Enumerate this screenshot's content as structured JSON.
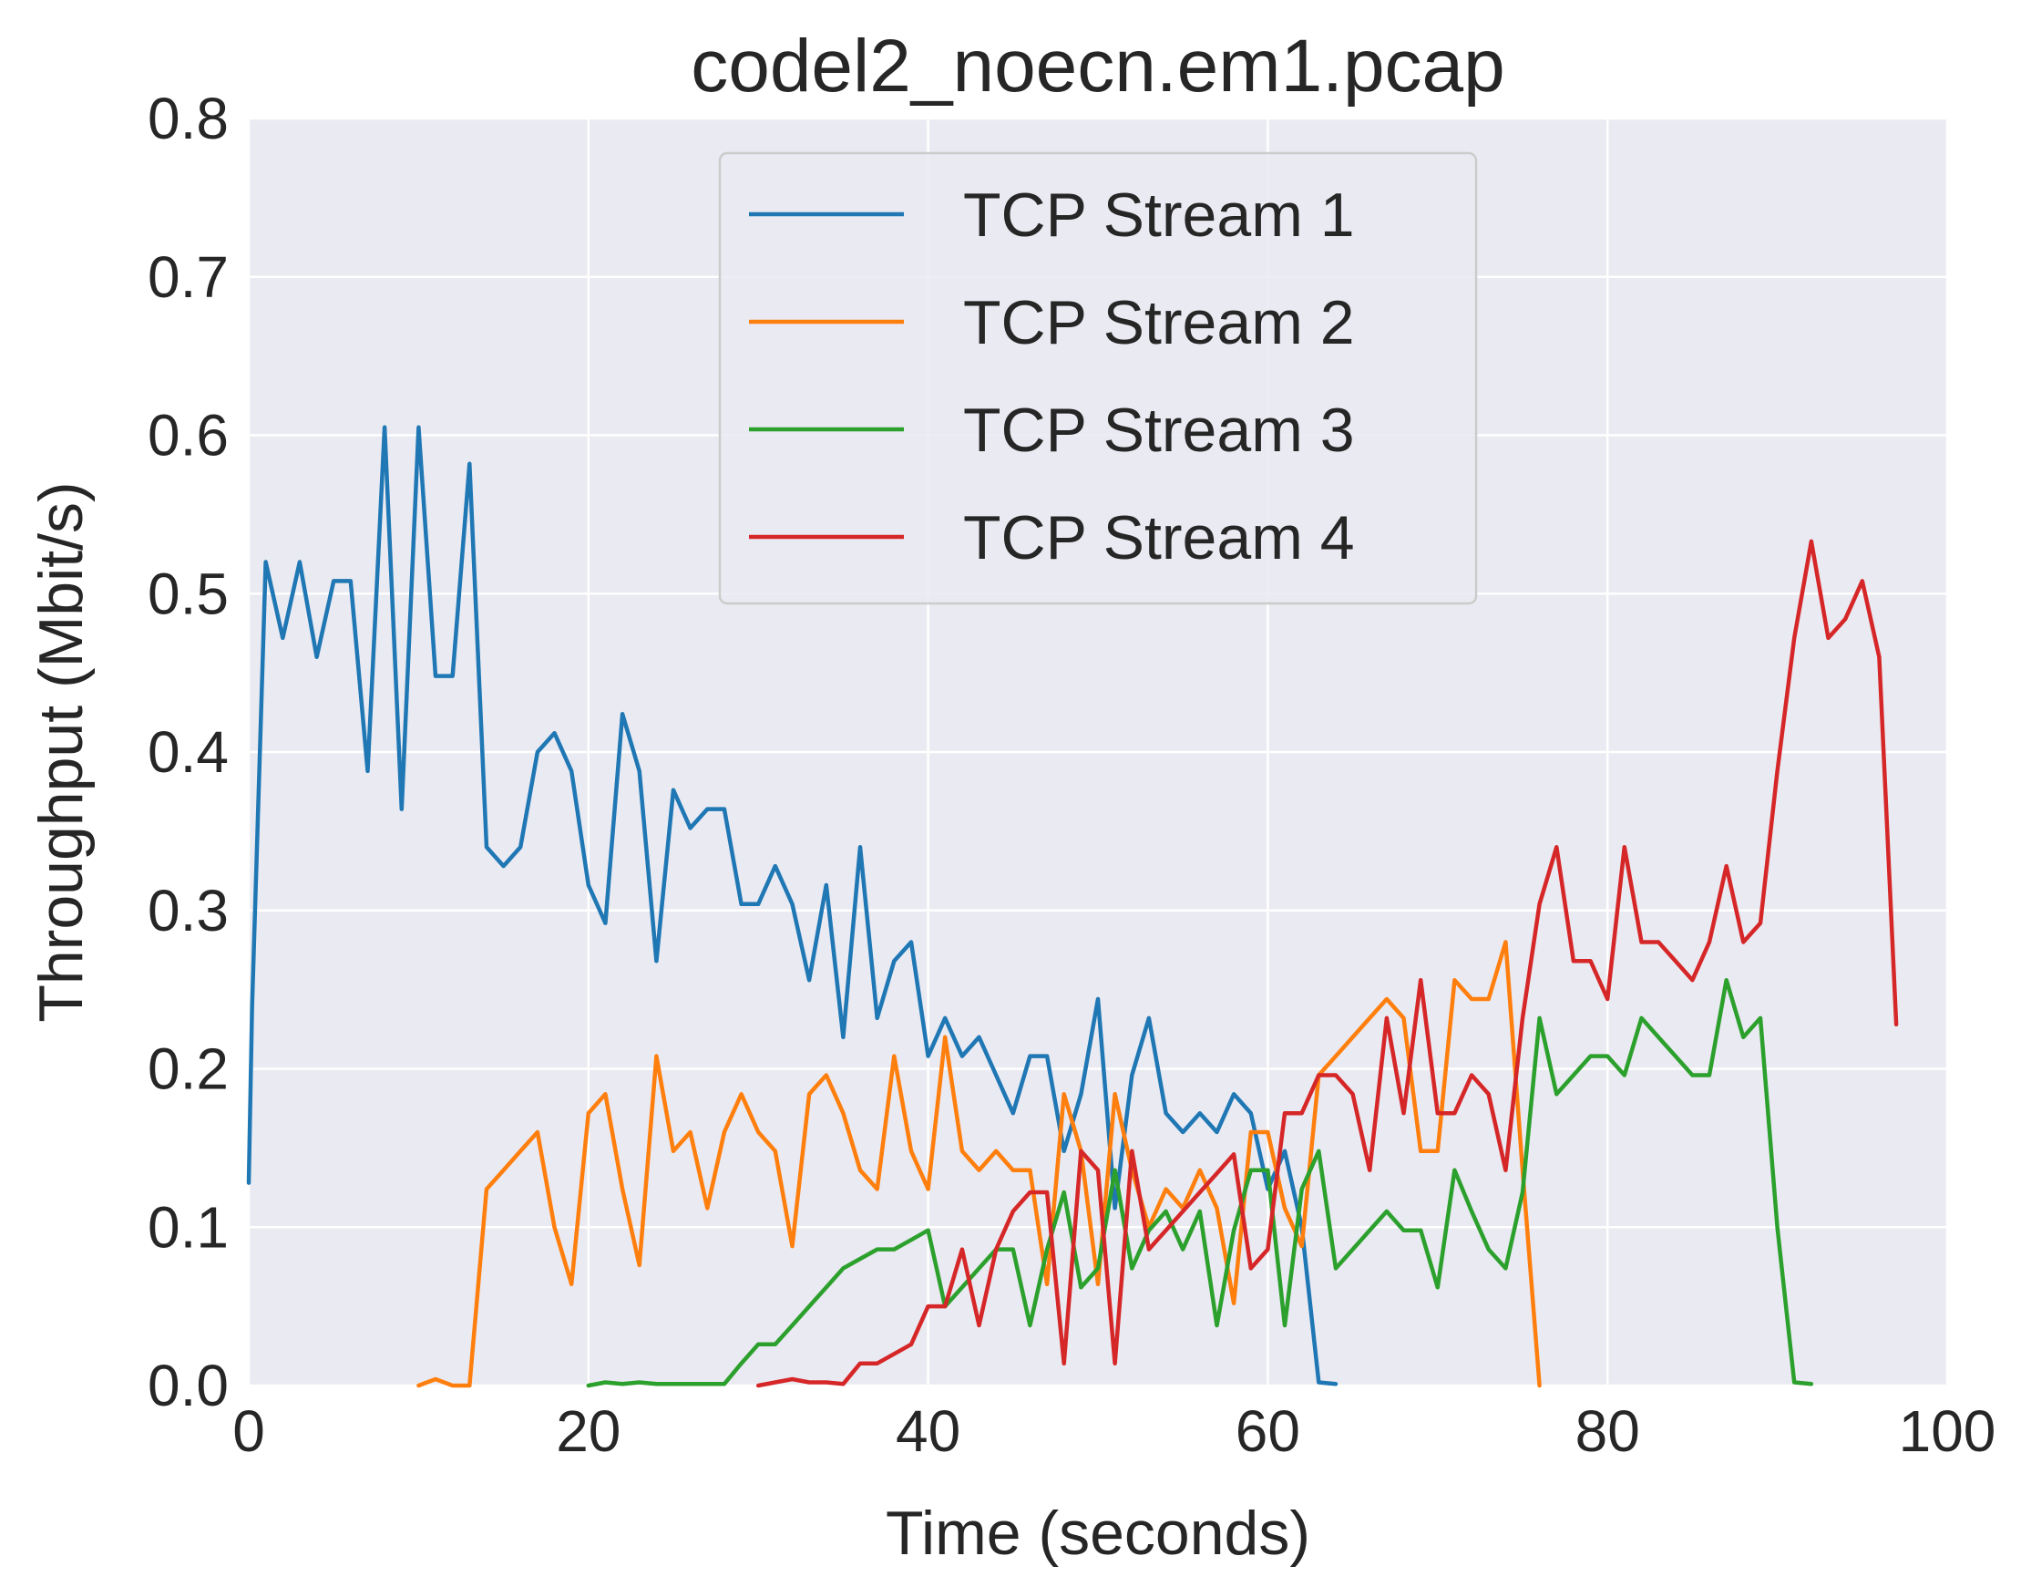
{
  "chart_data": {
    "type": "line",
    "title": "codel2_noecn.em1.pcap",
    "xlabel": "Time (seconds)",
    "ylabel": "Throughput (Mbit/s)",
    "xlim": [
      0,
      100
    ],
    "ylim": [
      0,
      0.8
    ],
    "xticks": [
      "0",
      "20",
      "40",
      "60",
      "80",
      "100"
    ],
    "yticks": [
      "0.0",
      "0.1",
      "0.2",
      "0.3",
      "0.4",
      "0.5",
      "0.6",
      "0.7",
      "0.8"
    ],
    "grid": true,
    "legend_position": "upper-center",
    "series": [
      {
        "name": "TCP Stream 1",
        "color": "#1f77b4",
        "x": [
          0,
          0.2,
          1,
          2,
          3,
          4,
          5,
          6,
          7,
          8,
          9,
          10,
          11,
          12,
          13,
          14,
          15,
          16,
          17,
          18,
          19,
          20,
          21,
          22,
          23,
          24,
          25,
          26,
          27,
          28,
          29,
          30,
          31,
          32,
          33,
          34,
          35,
          36,
          37,
          38,
          39,
          40,
          41,
          42,
          43,
          44,
          45,
          46,
          47,
          48,
          49,
          50,
          51,
          52,
          53,
          54,
          55,
          56,
          57,
          58,
          59,
          60,
          61,
          62,
          63,
          64
        ],
        "y": [
          0.128,
          0.24,
          0.52,
          0.472,
          0.52,
          0.46,
          0.508,
          0.508,
          0.388,
          0.605,
          0.364,
          0.605,
          0.448,
          0.448,
          0.582,
          0.34,
          0.328,
          0.34,
          0.4,
          0.412,
          0.388,
          0.316,
          0.292,
          0.424,
          0.388,
          0.268,
          0.376,
          0.352,
          0.364,
          0.364,
          0.304,
          0.304,
          0.328,
          0.304,
          0.256,
          0.316,
          0.22,
          0.34,
          0.232,
          0.268,
          0.28,
          0.208,
          0.232,
          0.208,
          0.22,
          0.196,
          0.172,
          0.208,
          0.208,
          0.148,
          0.184,
          0.244,
          0.112,
          0.196,
          0.232,
          0.172,
          0.16,
          0.172,
          0.16,
          0.184,
          0.172,
          0.124,
          0.148,
          0.1,
          0.002,
          0.001
        ]
      },
      {
        "name": "TCP Stream 2",
        "color": "#ff7f0e",
        "x": [
          10,
          11,
          12,
          13,
          14,
          15,
          16,
          17,
          18,
          19,
          20,
          21,
          22,
          23,
          24,
          25,
          26,
          27,
          28,
          29,
          30,
          31,
          32,
          33,
          34,
          35,
          36,
          37,
          38,
          39,
          40,
          41,
          42,
          43,
          44,
          45,
          46,
          47,
          48,
          49,
          50,
          51,
          52,
          53,
          54,
          55,
          56,
          57,
          58,
          59,
          60,
          61,
          62,
          63,
          64,
          65,
          66,
          67,
          68,
          69,
          70,
          71,
          72,
          73,
          74,
          75,
          76
        ],
        "y": [
          0.0,
          0.004,
          0.0,
          0.0,
          0.124,
          0.136,
          0.148,
          0.16,
          0.1,
          0.064,
          0.172,
          0.184,
          0.124,
          0.076,
          0.208,
          0.148,
          0.16,
          0.112,
          0.16,
          0.184,
          0.16,
          0.148,
          0.088,
          0.184,
          0.196,
          0.172,
          0.136,
          0.124,
          0.208,
          0.148,
          0.124,
          0.22,
          0.148,
          0.136,
          0.148,
          0.136,
          0.136,
          0.064,
          0.184,
          0.148,
          0.064,
          0.184,
          0.136,
          0.1,
          0.124,
          0.112,
          0.136,
          0.112,
          0.052,
          0.16,
          0.16,
          0.112,
          0.088,
          0.196,
          0.208,
          0.22,
          0.232,
          0.244,
          0.232,
          0.148,
          0.148,
          0.256,
          0.244,
          0.244,
          0.28,
          0.136,
          0.0
        ]
      },
      {
        "name": "TCP Stream 3",
        "color": "#2ca02c",
        "x": [
          20,
          21,
          22,
          23,
          24,
          25,
          26,
          27,
          28,
          29,
          30,
          31,
          32,
          33,
          34,
          35,
          36,
          37,
          38,
          39,
          40,
          41,
          42,
          43,
          44,
          45,
          46,
          47,
          48,
          49,
          50,
          51,
          52,
          53,
          54,
          55,
          56,
          57,
          58,
          59,
          60,
          61,
          62,
          63,
          64,
          65,
          66,
          67,
          68,
          69,
          70,
          71,
          72,
          73,
          74,
          75,
          76,
          77,
          78,
          79,
          80,
          81,
          82,
          83,
          84,
          85,
          86,
          87,
          88,
          89,
          90,
          91,
          92
        ],
        "y": [
          0.0,
          0.002,
          0.001,
          0.002,
          0.001,
          0.001,
          0.001,
          0.001,
          0.001,
          0.014,
          0.026,
          0.026,
          0.038,
          0.05,
          0.062,
          0.074,
          0.08,
          0.086,
          0.086,
          0.092,
          0.098,
          0.05,
          0.062,
          0.074,
          0.086,
          0.086,
          0.038,
          0.086,
          0.122,
          0.062,
          0.074,
          0.136,
          0.074,
          0.098,
          0.11,
          0.086,
          0.11,
          0.038,
          0.098,
          0.136,
          0.136,
          0.038,
          0.124,
          0.148,
          0.074,
          0.086,
          0.098,
          0.11,
          0.098,
          0.098,
          0.062,
          0.136,
          0.11,
          0.086,
          0.074,
          0.122,
          0.232,
          0.184,
          0.196,
          0.208,
          0.208,
          0.196,
          0.232,
          0.22,
          0.208,
          0.196,
          0.196,
          0.256,
          0.22,
          0.232,
          0.1,
          0.002,
          0.001
        ]
      },
      {
        "name": "TCP Stream 4",
        "color": "#d62728",
        "x": [
          30,
          31,
          32,
          33,
          34,
          35,
          36,
          37,
          38,
          39,
          40,
          41,
          42,
          43,
          44,
          45,
          46,
          47,
          48,
          49,
          50,
          51,
          52,
          53,
          54,
          55,
          56,
          57,
          58,
          59,
          60,
          61,
          62,
          63,
          64,
          65,
          66,
          67,
          68,
          69,
          70,
          71,
          72,
          73,
          74,
          75,
          76,
          77,
          78,
          79,
          80,
          81,
          82,
          83,
          84,
          85,
          86,
          87,
          88,
          89,
          90,
          91,
          92,
          93,
          94,
          95,
          96,
          97
        ],
        "y": [
          0.0,
          0.002,
          0.004,
          0.002,
          0.002,
          0.001,
          0.014,
          0.014,
          0.02,
          0.026,
          0.05,
          0.05,
          0.086,
          0.038,
          0.086,
          0.11,
          0.122,
          0.122,
          0.014,
          0.148,
          0.136,
          0.014,
          0.148,
          0.086,
          0.098,
          0.11,
          0.122,
          0.134,
          0.146,
          0.074,
          0.086,
          0.172,
          0.172,
          0.196,
          0.196,
          0.184,
          0.136,
          0.232,
          0.172,
          0.256,
          0.172,
          0.172,
          0.196,
          0.184,
          0.136,
          0.232,
          0.304,
          0.34,
          0.268,
          0.268,
          0.244,
          0.34,
          0.28,
          0.28,
          0.268,
          0.256,
          0.28,
          0.328,
          0.28,
          0.292,
          0.388,
          0.472,
          0.533,
          0.472,
          0.484,
          0.508,
          0.46,
          0.228
        ]
      }
    ]
  }
}
